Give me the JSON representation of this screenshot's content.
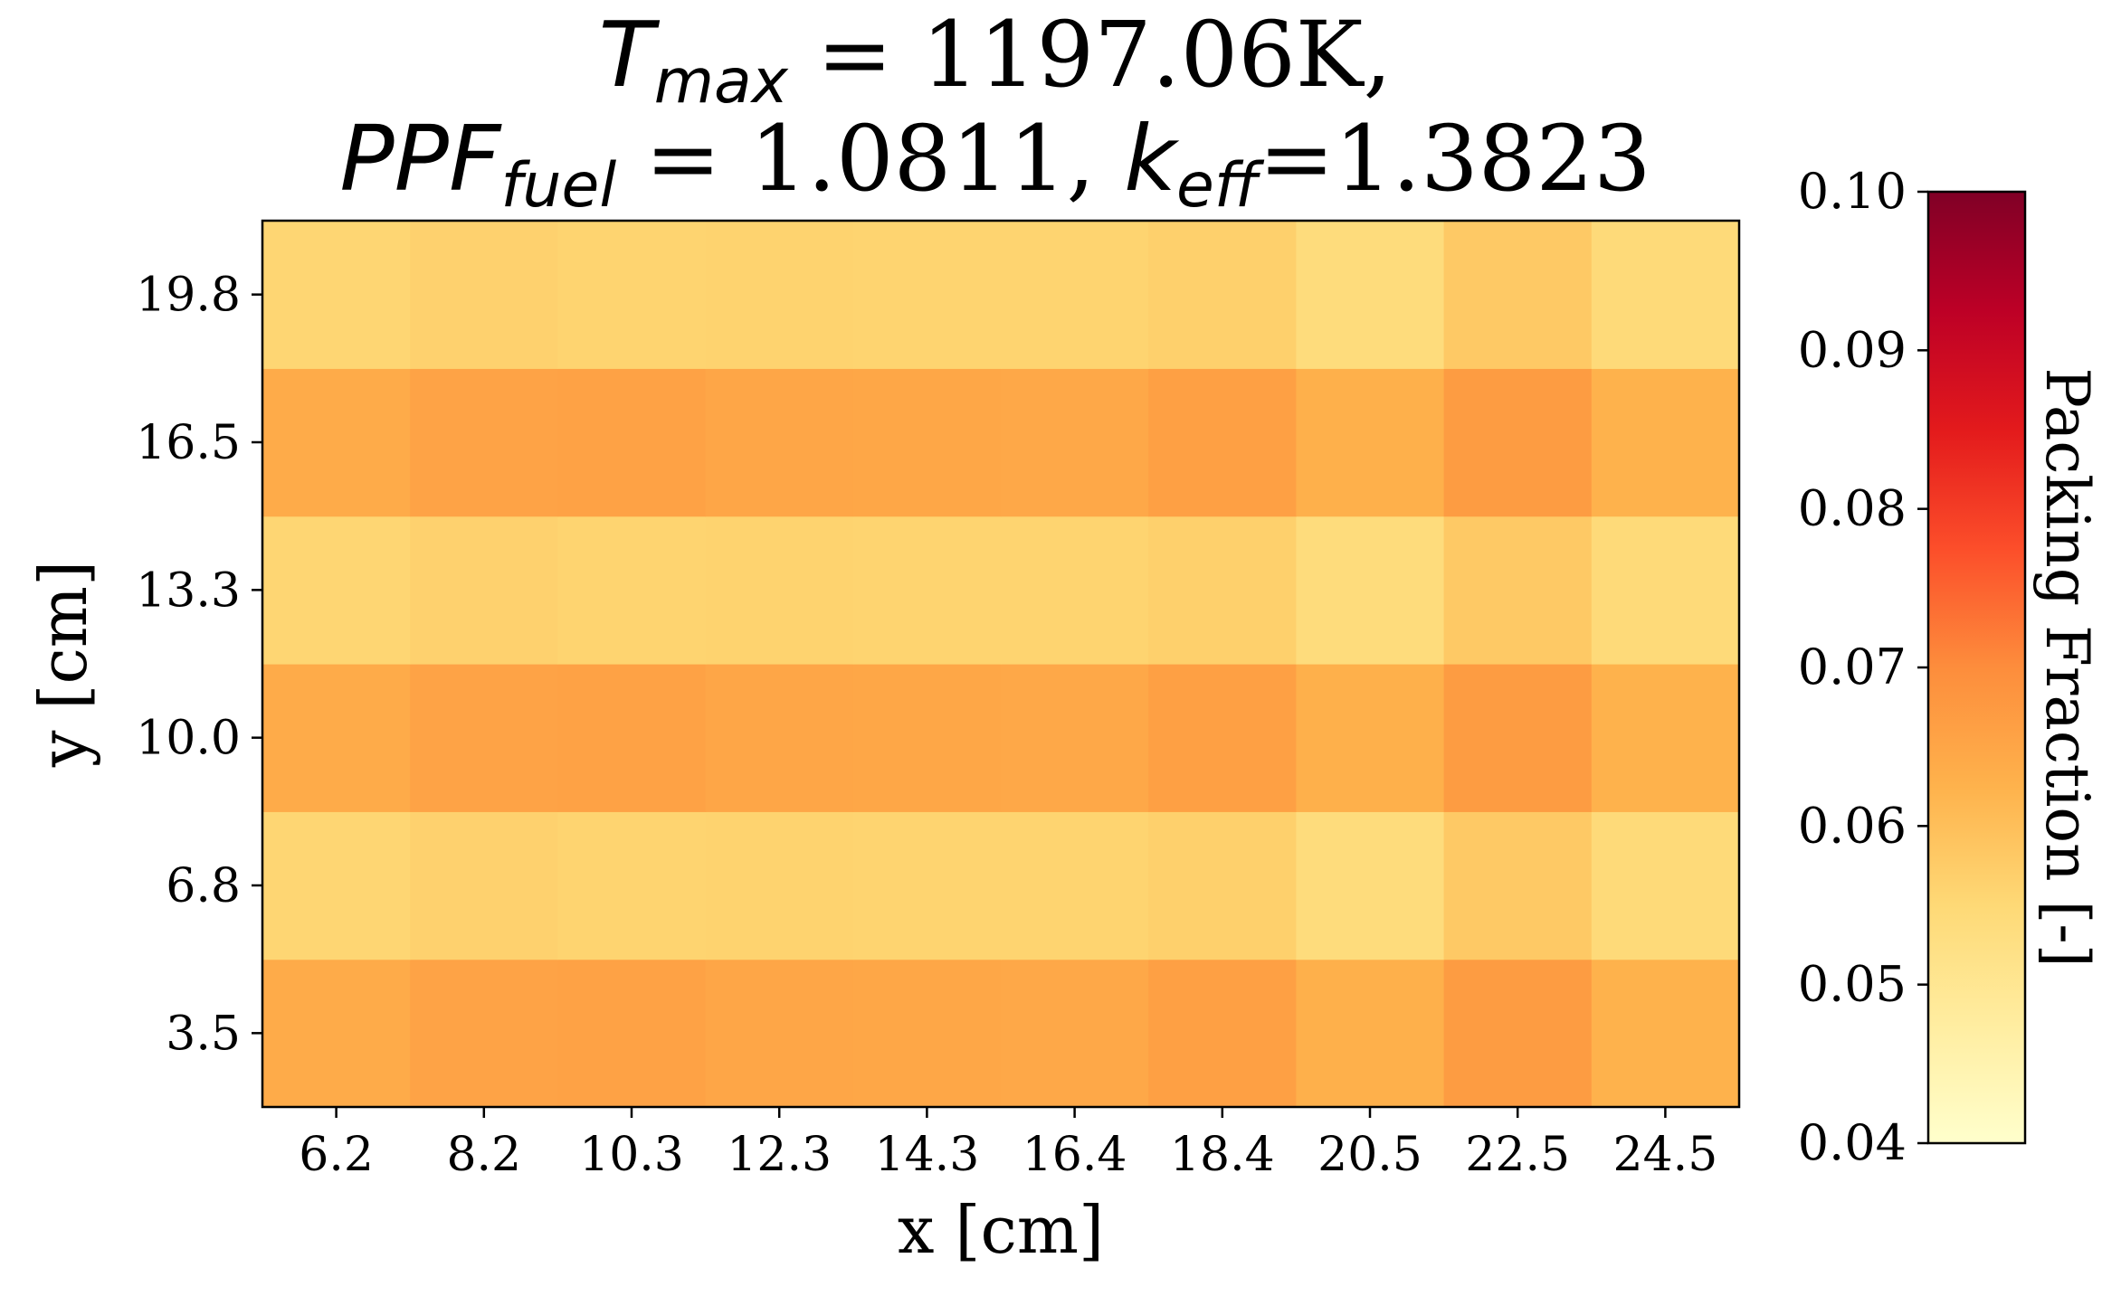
{
  "chart_data": {
    "type": "heatmap",
    "title": {
      "line1": {
        "t": "T",
        "t_sub": "max",
        "rest": " = 1197.06K,"
      },
      "line2": {
        "ppf": "PPF",
        "ppf_sub": "fuel",
        "mid": " = 1.0811, ",
        "k": "k",
        "k_sub": "eff",
        "end": "=1.3823"
      }
    },
    "xlabel": "x [cm]",
    "ylabel": "y [cm]",
    "x_ticks": [
      "6.2",
      "8.2",
      "10.3",
      "12.3",
      "14.3",
      "16.4",
      "18.4",
      "20.5",
      "22.5",
      "24.5"
    ],
    "y_ticks": [
      "3.5",
      "6.8",
      "10.0",
      "13.3",
      "16.5",
      "19.8"
    ],
    "values": [
      [
        0.064,
        0.0655,
        0.0658,
        0.065,
        0.0648,
        0.0645,
        0.0662,
        0.063,
        0.067,
        0.0625
      ],
      [
        0.0555,
        0.0565,
        0.056,
        0.0562,
        0.056,
        0.056,
        0.0568,
        0.054,
        0.058,
        0.0545
      ],
      [
        0.064,
        0.0655,
        0.0658,
        0.065,
        0.0648,
        0.0645,
        0.0662,
        0.063,
        0.067,
        0.0625
      ],
      [
        0.0555,
        0.0565,
        0.056,
        0.0562,
        0.056,
        0.056,
        0.0568,
        0.054,
        0.058,
        0.0545
      ],
      [
        0.064,
        0.0655,
        0.0658,
        0.065,
        0.0648,
        0.0645,
        0.0662,
        0.063,
        0.067,
        0.0625
      ],
      [
        0.0555,
        0.0565,
        0.056,
        0.0562,
        0.056,
        0.056,
        0.0568,
        0.054,
        0.058,
        0.0545
      ]
    ],
    "colorbar": {
      "label": "Packing Fraction [-]",
      "vmin": 0.04,
      "vmax": 0.1,
      "ticks": [
        "0.04",
        "0.05",
        "0.06",
        "0.07",
        "0.08",
        "0.09",
        "0.10"
      ],
      "colormap": "YlOrRd"
    }
  }
}
